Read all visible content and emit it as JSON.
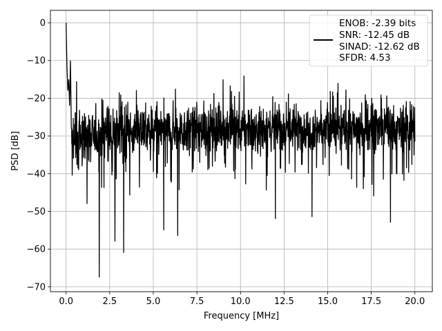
{
  "chart_data": {
    "type": "line",
    "title": "",
    "xlabel": "Frequency [MHz]",
    "ylabel": "PSD [dB]",
    "xlim": [
      -0.9,
      21.0
    ],
    "ylim": [
      -71.3,
      3.3
    ],
    "grid": true,
    "legend_position": "top-right",
    "x_ticks": [
      0.0,
      2.5,
      5.0,
      7.5,
      10.0,
      12.5,
      15.0,
      17.5,
      20.0
    ],
    "x_tick_labels": [
      "0.0",
      "2.5",
      "5.0",
      "7.5",
      "10.0",
      "12.5",
      "15.0",
      "17.5",
      "20.0"
    ],
    "y_ticks": [
      0,
      -10,
      -20,
      -30,
      -40,
      -50,
      -60,
      -70
    ],
    "y_tick_labels": [
      "0",
      "−10",
      "−20",
      "−30",
      "−40",
      "−50",
      "−60",
      "−70"
    ],
    "series": [
      {
        "color": "#000000",
        "x_range": [
          0.0,
          20.0
        ],
        "noise_floor_db": -28,
        "peak": {
          "x": 0.0,
          "y": 0.0
        },
        "start_values": [
          [
            0.0,
            0.0
          ],
          [
            0.02,
            -5
          ],
          [
            0.05,
            -12
          ],
          [
            0.1,
            -18
          ],
          [
            0.15,
            -15
          ],
          [
            0.2,
            -22
          ],
          [
            0.25,
            -10
          ]
        ],
        "notable_dips": [
          [
            0.35,
            -40.5
          ],
          [
            1.2,
            -48
          ],
          [
            1.9,
            -67.5
          ],
          [
            2.8,
            -58
          ],
          [
            3.3,
            -61
          ],
          [
            5.6,
            -55
          ],
          [
            6.4,
            -56.5
          ],
          [
            12.0,
            -52
          ],
          [
            14.1,
            -51.5
          ],
          [
            18.6,
            -53
          ]
        ],
        "notable_peaks": [
          [
            9.0,
            -15
          ],
          [
            10.2,
            -14
          ],
          [
            0.6,
            -15.5
          ]
        ]
      }
    ],
    "legend_entries": [
      "ENOB: -2.39 bits",
      "SNR: -12.45 dB",
      "SINAD: -12.62 dB",
      "SFDR: 4.53"
    ]
  }
}
